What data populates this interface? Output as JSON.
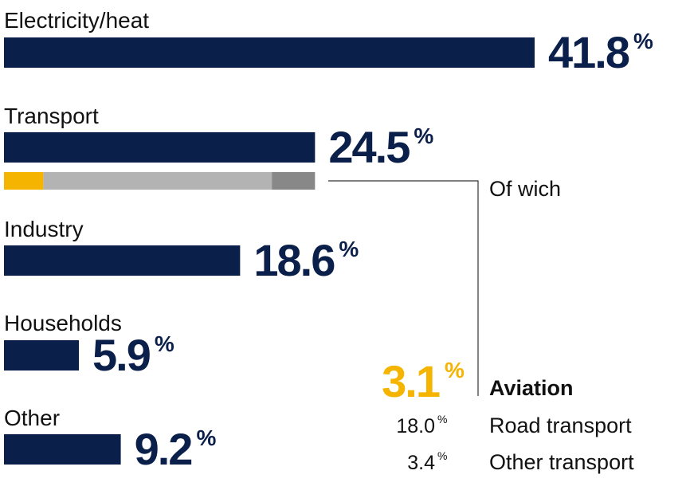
{
  "chart_data": {
    "type": "bar",
    "categories": [
      "Electricity/heat",
      "Transport",
      "Industry",
      "Households",
      "Other"
    ],
    "values": [
      41.8,
      24.5,
      18.6,
      5.9,
      9.2
    ],
    "unit": "%",
    "color": "#0b1f4b",
    "breakdown": {
      "label": "Of wich",
      "parent": 1,
      "categories": [
        "Aviation",
        "Road transport",
        "Other transport"
      ],
      "values": [
        3.1,
        18.0,
        3.4
      ],
      "value_labels": [
        "3.1",
        "18.0",
        "3.4"
      ],
      "colors": [
        "#f5b400",
        "#b3b3b3",
        "#888888"
      ]
    }
  }
}
